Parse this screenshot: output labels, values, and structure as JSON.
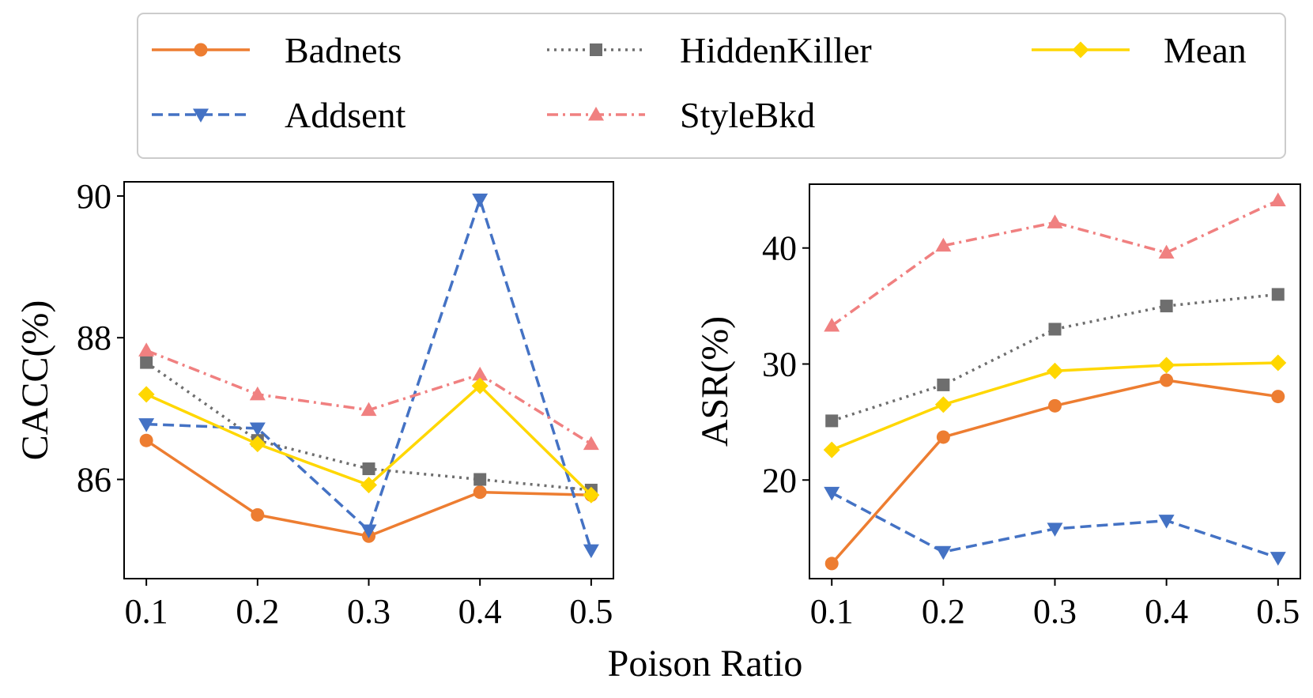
{
  "figure": {
    "shared_xlabel": "Poison Ratio"
  },
  "legend": {
    "entries": [
      {
        "label": "Badnets",
        "color": "#ED7D31",
        "dash": "solid",
        "marker": "circle"
      },
      {
        "label": "Addsent",
        "color": "#4472C4",
        "dash": "dashed",
        "marker": "triangle-down"
      },
      {
        "label": "HiddenKiller",
        "color": "#6E6E6E",
        "dash": "dotted",
        "marker": "square"
      },
      {
        "label": "StyleBkd",
        "color": "#F08080",
        "dash": "dashdot",
        "marker": "triangle-up"
      },
      {
        "label": "Mean",
        "color": "#FFD700",
        "dash": "solid",
        "marker": "diamond"
      }
    ]
  },
  "chart_data": [
    {
      "type": "line",
      "ylabel": "CACC(%)",
      "x": [
        0.1,
        0.2,
        0.3,
        0.4,
        0.5
      ],
      "xticks": [
        "0.1",
        "0.2",
        "0.3",
        "0.4",
        "0.5"
      ],
      "xlim": [
        0.08,
        0.52
      ],
      "yticks": [
        86,
        88,
        90
      ],
      "ylim": [
        84.6,
        90.2
      ],
      "series": [
        {
          "name": "Badnets",
          "values": [
            86.55,
            85.5,
            85.2,
            85.82,
            85.78
          ]
        },
        {
          "name": "Addsent",
          "values": [
            86.78,
            86.72,
            85.28,
            89.95,
            85.0
          ]
        },
        {
          "name": "HiddenKiller",
          "values": [
            87.65,
            86.55,
            86.15,
            86.0,
            85.85
          ]
        },
        {
          "name": "StyleBkd",
          "values": [
            87.82,
            87.2,
            86.98,
            87.48,
            86.5
          ]
        },
        {
          "name": "Mean",
          "values": [
            87.2,
            86.5,
            85.92,
            87.32,
            85.78
          ]
        }
      ]
    },
    {
      "type": "line",
      "ylabel": "ASR(%)",
      "x": [
        0.1,
        0.2,
        0.3,
        0.4,
        0.5
      ],
      "xticks": [
        "0.1",
        "0.2",
        "0.3",
        "0.4",
        "0.5"
      ],
      "xlim": [
        0.08,
        0.52
      ],
      "yticks": [
        20,
        30,
        40
      ],
      "ylim": [
        11.5,
        45.5
      ],
      "series": [
        {
          "name": "Badnets",
          "values": [
            12.8,
            23.7,
            26.4,
            28.6,
            27.2
          ]
        },
        {
          "name": "Addsent",
          "values": [
            18.9,
            13.8,
            15.8,
            16.5,
            13.3
          ]
        },
        {
          "name": "HiddenKiller",
          "values": [
            25.1,
            28.2,
            33.0,
            35.0,
            36.0
          ]
        },
        {
          "name": "StyleBkd",
          "values": [
            33.3,
            40.2,
            42.2,
            39.6,
            44.1
          ]
        },
        {
          "name": "Mean",
          "values": [
            22.6,
            26.5,
            29.4,
            29.9,
            30.1
          ]
        }
      ]
    }
  ]
}
